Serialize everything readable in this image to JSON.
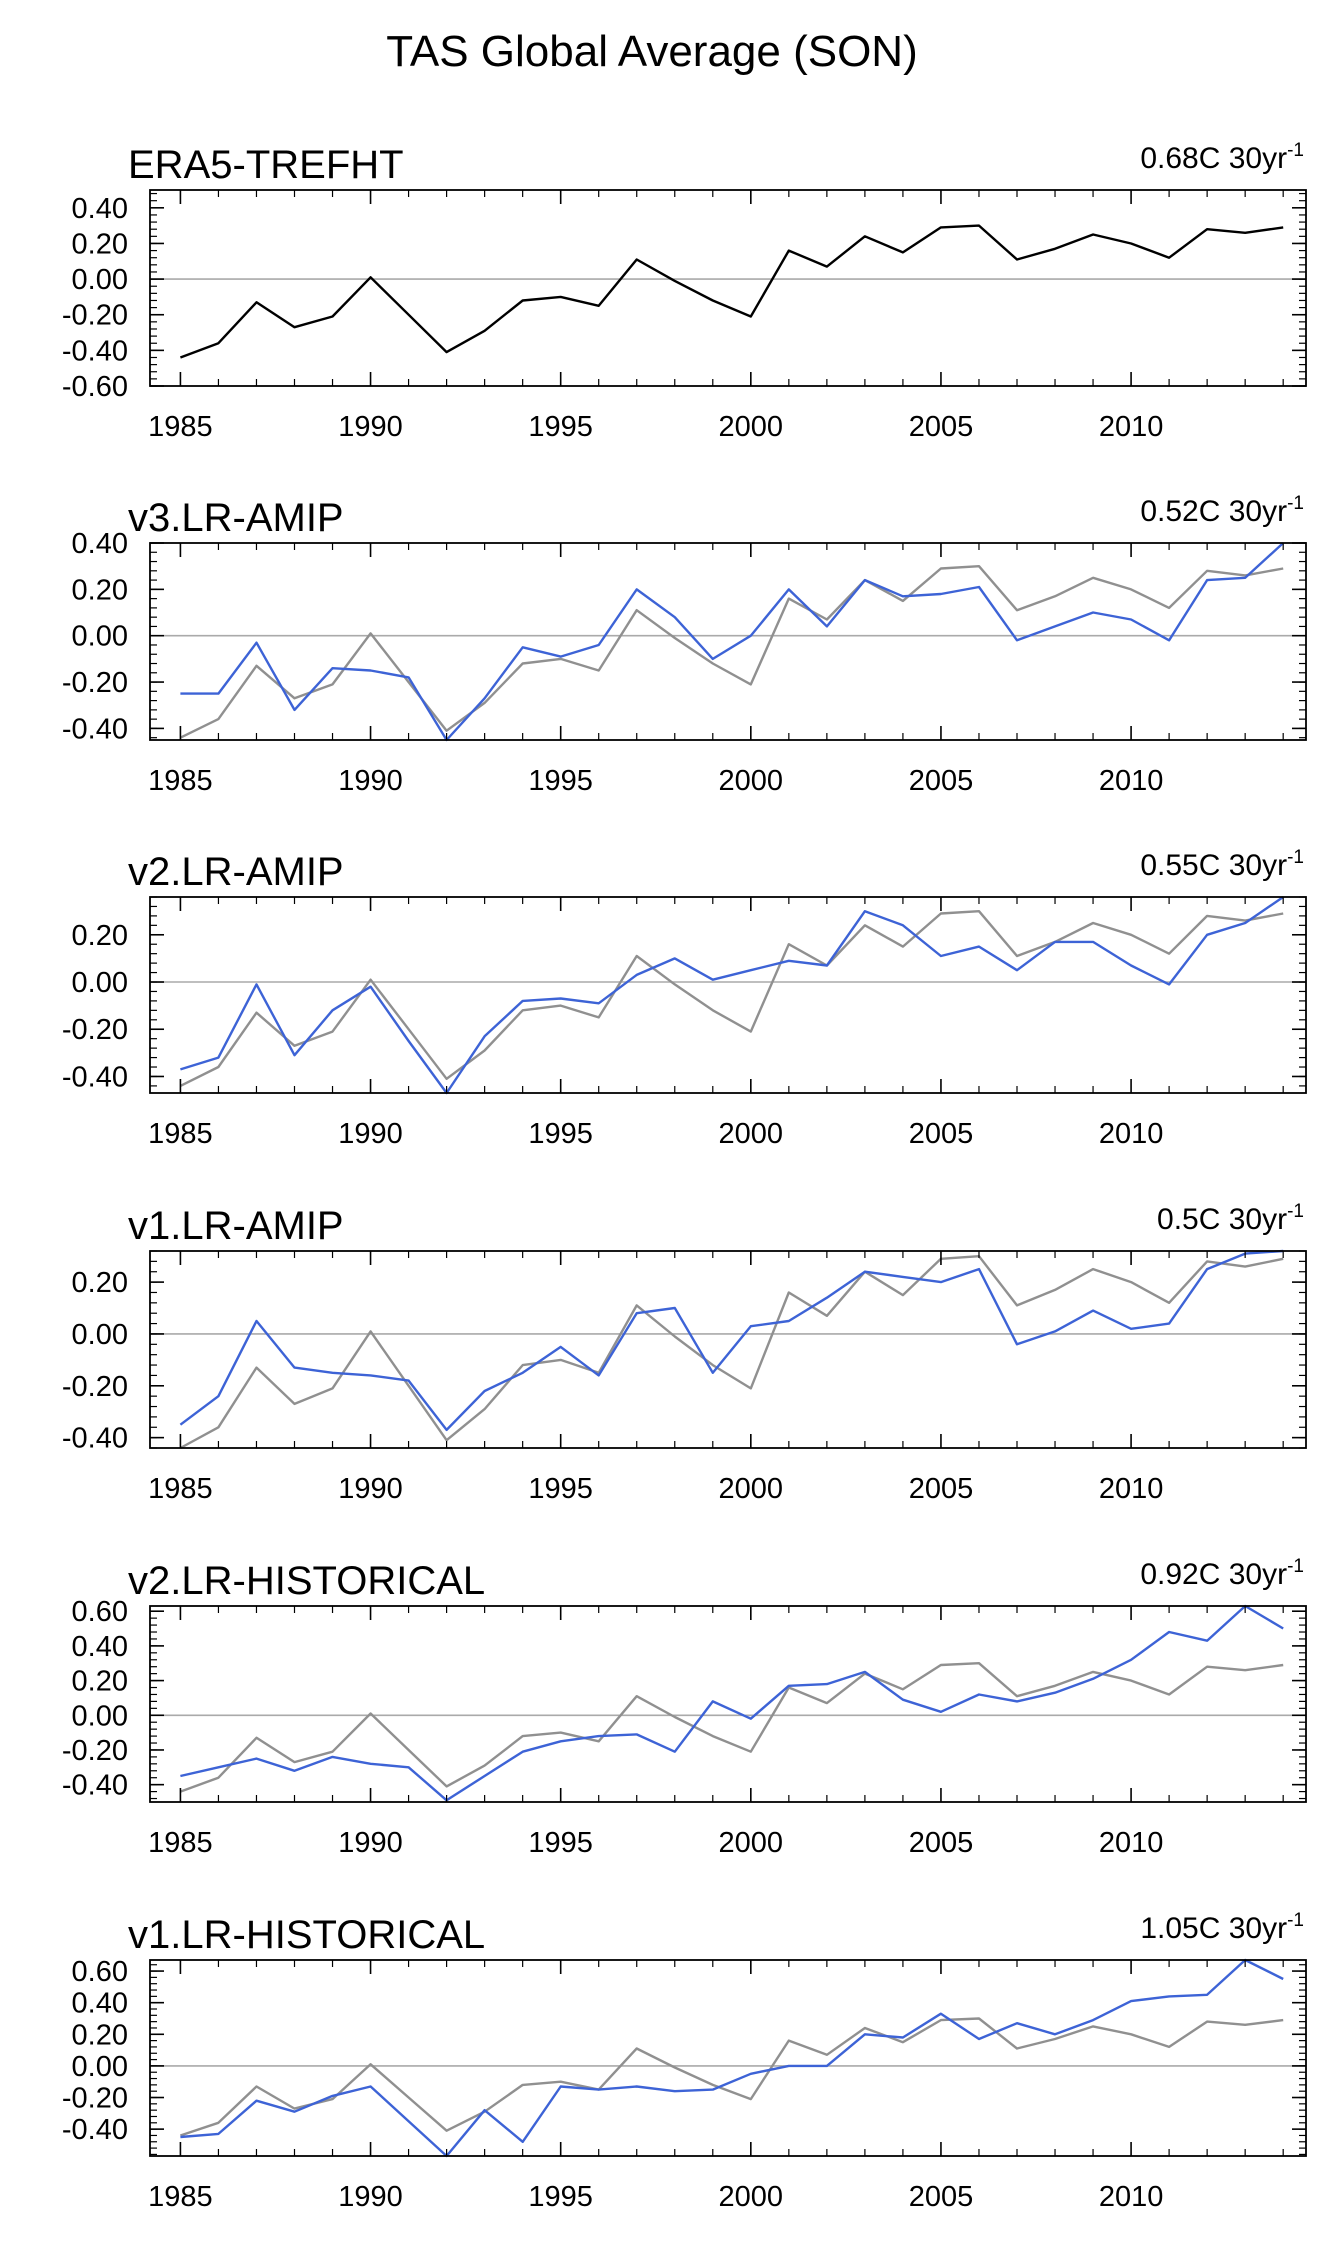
{
  "title": "TAS Global Average (SON)",
  "chart_data": {
    "type": "line",
    "title": "TAS Global Average (SON)",
    "xlim": [
      1984.2,
      2014.6
    ],
    "x_ticks_major": [
      1985,
      1990,
      1995,
      2000,
      2005,
      2010
    ],
    "x": [
      1985,
      1986,
      1987,
      1988,
      1989,
      1990,
      1991,
      1992,
      1993,
      1994,
      1995,
      1996,
      1997,
      1998,
      1999,
      2000,
      2001,
      2002,
      2003,
      2004,
      2005,
      2006,
      2007,
      2008,
      2009,
      2010,
      2011,
      2012,
      2013,
      2014
    ],
    "reference": {
      "name": "ERA5-TREFHT",
      "color": "#000000",
      "overlay_color": "#909090",
      "values": [
        -0.44,
        -0.36,
        -0.13,
        -0.27,
        -0.21,
        0.01,
        -0.2,
        -0.41,
        -0.29,
        -0.12,
        -0.1,
        -0.15,
        0.11,
        -0.01,
        -0.12,
        -0.21,
        0.16,
        0.07,
        0.24,
        0.15,
        0.29,
        0.3,
        0.11,
        0.17,
        0.25,
        0.2,
        0.12,
        0.28,
        0.26,
        0.29
      ]
    },
    "panels": [
      {
        "name": "ERA5-TREFHT",
        "trend_value": "0.68C 30yr",
        "trend_exp": "-1",
        "ylim": [
          -0.6,
          0.5
        ],
        "y_ticks": [
          -0.6,
          -0.4,
          -0.2,
          0.0,
          0.2,
          0.4
        ],
        "y_tick_labels": [
          "-0.60",
          "-0.40",
          "-0.20",
          "0.00",
          "0.20",
          "0.40"
        ],
        "show_reference_overlay": false,
        "series": [
          {
            "name": "ERA5-TREFHT",
            "color": "#000000",
            "values": [
              -0.44,
              -0.36,
              -0.13,
              -0.27,
              -0.21,
              0.01,
              -0.2,
              -0.41,
              -0.29,
              -0.12,
              -0.1,
              -0.15,
              0.11,
              -0.01,
              -0.12,
              -0.21,
              0.16,
              0.07,
              0.24,
              0.15,
              0.29,
              0.3,
              0.11,
              0.17,
              0.25,
              0.2,
              0.12,
              0.28,
              0.26,
              0.29
            ]
          }
        ]
      },
      {
        "name": "v3.LR-AMIP",
        "trend_value": "0.52C 30yr",
        "trend_exp": "-1",
        "ylim": [
          -0.45,
          0.4
        ],
        "y_ticks": [
          -0.4,
          -0.2,
          0.0,
          0.2,
          0.4
        ],
        "y_tick_labels": [
          "-0.40",
          "-0.20",
          "0.00",
          "0.20",
          "0.40"
        ],
        "show_reference_overlay": true,
        "series": [
          {
            "name": "v3.LR-AMIP",
            "color": "#3d63d6",
            "values": [
              -0.25,
              -0.25,
              -0.03,
              -0.32,
              -0.14,
              -0.15,
              -0.18,
              -0.45,
              -0.27,
              -0.05,
              -0.09,
              -0.04,
              0.2,
              0.08,
              -0.1,
              0.0,
              0.2,
              0.04,
              0.24,
              0.17,
              0.18,
              0.21,
              -0.02,
              0.04,
              0.1,
              0.07,
              -0.02,
              0.24,
              0.25,
              0.4
            ]
          }
        ]
      },
      {
        "name": "v2.LR-AMIP",
        "trend_value": "0.55C 30yr",
        "trend_exp": "-1",
        "ylim": [
          -0.47,
          0.36
        ],
        "y_ticks": [
          -0.4,
          -0.2,
          0.0,
          0.2
        ],
        "y_tick_labels": [
          "-0.40",
          "-0.20",
          "0.00",
          "0.20"
        ],
        "show_reference_overlay": true,
        "series": [
          {
            "name": "v2.LR-AMIP",
            "color": "#3d63d6",
            "values": [
              -0.37,
              -0.32,
              -0.01,
              -0.31,
              -0.12,
              -0.02,
              -0.25,
              -0.47,
              -0.23,
              -0.08,
              -0.07,
              -0.09,
              0.03,
              0.1,
              0.01,
              0.05,
              0.09,
              0.07,
              0.3,
              0.24,
              0.11,
              0.15,
              0.05,
              0.17,
              0.17,
              0.07,
              -0.01,
              0.2,
              0.25,
              0.36
            ]
          }
        ]
      },
      {
        "name": "v1.LR-AMIP",
        "trend_value": "0.5C 30yr",
        "trend_exp": "-1",
        "ylim": [
          -0.44,
          0.32
        ],
        "y_ticks": [
          -0.4,
          -0.2,
          0.0,
          0.2
        ],
        "y_tick_labels": [
          "-0.40",
          "-0.20",
          "0.00",
          "0.20"
        ],
        "show_reference_overlay": true,
        "series": [
          {
            "name": "v1.LR-AMIP",
            "color": "#3d63d6",
            "values": [
              -0.35,
              -0.24,
              0.05,
              -0.13,
              -0.15,
              -0.16,
              -0.18,
              -0.37,
              -0.22,
              -0.15,
              -0.05,
              -0.16,
              0.08,
              0.1,
              -0.15,
              0.03,
              0.05,
              0.14,
              0.24,
              0.22,
              0.2,
              0.25,
              -0.04,
              0.01,
              0.09,
              0.02,
              0.04,
              0.25,
              0.31,
              0.32
            ]
          }
        ]
      },
      {
        "name": "v2.LR-HISTORICAL",
        "trend_value": "0.92C 30yr",
        "trend_exp": "-1",
        "ylim": [
          -0.5,
          0.63
        ],
        "y_ticks": [
          -0.4,
          -0.2,
          0.0,
          0.2,
          0.4,
          0.6
        ],
        "y_tick_labels": [
          "-0.40",
          "-0.20",
          "0.00",
          "0.20",
          "0.40",
          "0.60"
        ],
        "show_reference_overlay": true,
        "series": [
          {
            "name": "v2.LR-HISTORICAL",
            "color": "#3d63d6",
            "values": [
              -0.35,
              -0.3,
              -0.25,
              -0.32,
              -0.24,
              -0.28,
              -0.3,
              -0.49,
              -0.35,
              -0.21,
              -0.15,
              -0.12,
              -0.11,
              -0.21,
              0.08,
              -0.02,
              0.17,
              0.18,
              0.25,
              0.09,
              0.02,
              0.12,
              0.08,
              0.13,
              0.21,
              0.32,
              0.48,
              0.43,
              0.63,
              0.5
            ]
          }
        ]
      },
      {
        "name": "v1.LR-HISTORICAL",
        "trend_value": "1.05C 30yr",
        "trend_exp": "-1",
        "ylim": [
          -0.57,
          0.67
        ],
        "y_ticks": [
          -0.4,
          -0.2,
          0.0,
          0.2,
          0.4,
          0.6
        ],
        "y_tick_labels": [
          "-0.40",
          "-0.20",
          "0.00",
          "0.20",
          "0.40",
          "0.60"
        ],
        "show_reference_overlay": true,
        "series": [
          {
            "name": "v1.LR-HISTORICAL",
            "color": "#3d63d6",
            "values": [
              -0.45,
              -0.43,
              -0.22,
              -0.29,
              -0.19,
              -0.13,
              -0.35,
              -0.57,
              -0.28,
              -0.48,
              -0.13,
              -0.15,
              -0.13,
              -0.16,
              -0.15,
              -0.05,
              0.0,
              0.0,
              0.2,
              0.18,
              0.33,
              0.17,
              0.27,
              0.2,
              0.29,
              0.41,
              0.44,
              0.45,
              0.67,
              0.55
            ]
          }
        ]
      }
    ]
  }
}
